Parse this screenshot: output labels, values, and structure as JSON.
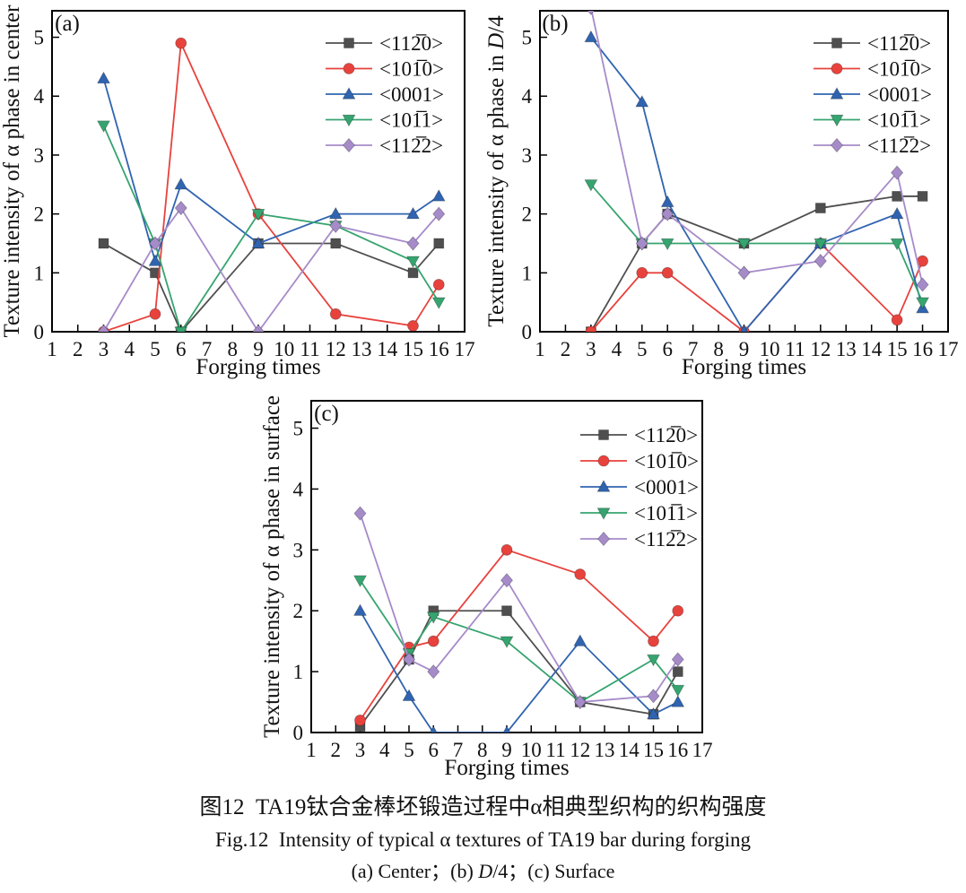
{
  "figure": {
    "caption_cn": "图12  TA19钛合金棒坯锻造过程中α相典型织构的织构强度",
    "caption_en": "Fig.12  Intensity of typical α textures of TA19 bar during forging",
    "caption_sub": "(a) Center；(b) D/4；(c) Surface",
    "caption_sub_parts": [
      {
        "text": "(a) Center；(b) ",
        "italic": false
      },
      {
        "text": "D",
        "italic": true
      },
      {
        "text": "/4；(c) Surface",
        "italic": false
      }
    ]
  },
  "chart_data": [
    {
      "id": "a",
      "type": "line",
      "panel_label": "(a)",
      "xlabel": "Forging times",
      "ylabel": "Texture intensity of α phase in center",
      "ylabel_parts": [
        {
          "text": "Texture intensity of α phase in center",
          "italic": false
        }
      ],
      "xlim": [
        1,
        17
      ],
      "ylim": [
        0,
        5.45
      ],
      "xticks": [
        1,
        2,
        3,
        4,
        5,
        6,
        7,
        8,
        9,
        10,
        11,
        12,
        13,
        14,
        15,
        16,
        17
      ],
      "yticks": [
        0,
        1,
        2,
        3,
        4,
        5
      ],
      "grid": false,
      "legend_position": "top-right",
      "x": [
        3,
        5,
        6,
        9,
        12,
        15,
        16
      ],
      "series": [
        {
          "name": "<112̅0>",
          "marker": "square",
          "color": "#4f4f4f",
          "values": [
            1.5,
            1.0,
            0.0,
            1.5,
            1.5,
            1.0,
            1.5
          ]
        },
        {
          "name": "<101̅0>",
          "marker": "circle",
          "color": "#e8423d",
          "values": [
            0.0,
            0.3,
            4.9,
            2.0,
            0.3,
            0.1,
            0.8
          ]
        },
        {
          "name": "<0001>",
          "marker": "triangle-up",
          "color": "#3064b0",
          "values": [
            4.3,
            1.2,
            2.5,
            1.5,
            2.0,
            2.0,
            2.3
          ]
        },
        {
          "name": "<101̅1>",
          "marker": "triangle-down",
          "color": "#36a46f",
          "values": [
            3.5,
            1.5,
            0.0,
            2.0,
            1.8,
            1.2,
            0.5
          ]
        },
        {
          "name": "<112̅2>",
          "marker": "diamond",
          "color": "#a68bc9",
          "values": [
            0.0,
            1.5,
            2.1,
            0.0,
            1.8,
            1.5,
            2.0
          ]
        }
      ]
    },
    {
      "id": "b",
      "type": "line",
      "panel_label": "(b)",
      "xlabel": "Forging times",
      "ylabel": "Texture intensity of α phase in D/4",
      "ylabel_parts": [
        {
          "text": "Texture intensity of α phase in ",
          "italic": false
        },
        {
          "text": "D",
          "italic": true
        },
        {
          "text": "/4",
          "italic": false
        }
      ],
      "xlim": [
        1,
        17
      ],
      "ylim": [
        0,
        5.45
      ],
      "xticks": [
        1,
        2,
        3,
        4,
        5,
        6,
        7,
        8,
        9,
        10,
        11,
        12,
        13,
        14,
        15,
        16,
        17
      ],
      "yticks": [
        0,
        1,
        2,
        3,
        4,
        5
      ],
      "grid": false,
      "legend_position": "top-right",
      "x": [
        3,
        5,
        6,
        9,
        12,
        15,
        16
      ],
      "series": [
        {
          "name": "<112̅0>",
          "marker": "square",
          "color": "#4f4f4f",
          "values": [
            0.0,
            1.5,
            2.0,
            1.5,
            2.1,
            2.3,
            2.3
          ]
        },
        {
          "name": "<101̅0>",
          "marker": "circle",
          "color": "#e8423d",
          "values": [
            0.0,
            1.0,
            1.0,
            0.0,
            1.5,
            0.2,
            1.2
          ]
        },
        {
          "name": "<0001>",
          "marker": "triangle-up",
          "color": "#3064b0",
          "values": [
            5.0,
            3.9,
            2.2,
            0.0,
            1.5,
            2.0,
            0.4
          ]
        },
        {
          "name": "<101̅1>",
          "marker": "triangle-down",
          "color": "#36a46f",
          "values": [
            2.5,
            1.5,
            1.5,
            1.5,
            1.5,
            1.5,
            0.5
          ]
        },
        {
          "name": "<112̅2>",
          "marker": "diamond",
          "color": "#a68bc9",
          "values": [
            5.5,
            1.5,
            2.0,
            1.0,
            1.2,
            2.7,
            0.8
          ]
        }
      ]
    },
    {
      "id": "c",
      "type": "line",
      "panel_label": "(c)",
      "xlabel": "Forging times",
      "ylabel": "Texture intensity of α phase in surface",
      "ylabel_parts": [
        {
          "text": "Texture intensity of α phase in surface",
          "italic": false
        }
      ],
      "xlim": [
        1,
        17
      ],
      "ylim": [
        0,
        5.45
      ],
      "xticks": [
        1,
        2,
        3,
        4,
        5,
        6,
        7,
        8,
        9,
        10,
        11,
        12,
        13,
        14,
        15,
        16,
        17
      ],
      "yticks": [
        0,
        1,
        2,
        3,
        4,
        5
      ],
      "grid": false,
      "legend_position": "top-right",
      "x": [
        3,
        5,
        6,
        9,
        12,
        15,
        16
      ],
      "series": [
        {
          "name": "<112̅0>",
          "marker": "square",
          "color": "#4f4f4f",
          "values": [
            0.1,
            1.2,
            2.0,
            2.0,
            0.5,
            0.3,
            1.0
          ]
        },
        {
          "name": "<101̅0>",
          "marker": "circle",
          "color": "#e8423d",
          "values": [
            0.2,
            1.4,
            1.5,
            3.0,
            2.6,
            1.5,
            2.0
          ]
        },
        {
          "name": "<0001>",
          "marker": "triangle-up",
          "color": "#3064b0",
          "values": [
            2.0,
            0.6,
            0.0,
            0.0,
            1.5,
            0.3,
            0.5
          ]
        },
        {
          "name": "<101̅1>",
          "marker": "triangle-down",
          "color": "#36a46f",
          "values": [
            2.5,
            1.3,
            1.9,
            1.5,
            0.5,
            1.2,
            0.7
          ]
        },
        {
          "name": "<112̅2>",
          "marker": "diamond",
          "color": "#a68bc9",
          "values": [
            3.6,
            1.2,
            1.0,
            2.5,
            0.5,
            0.6,
            1.2
          ]
        }
      ]
    }
  ]
}
